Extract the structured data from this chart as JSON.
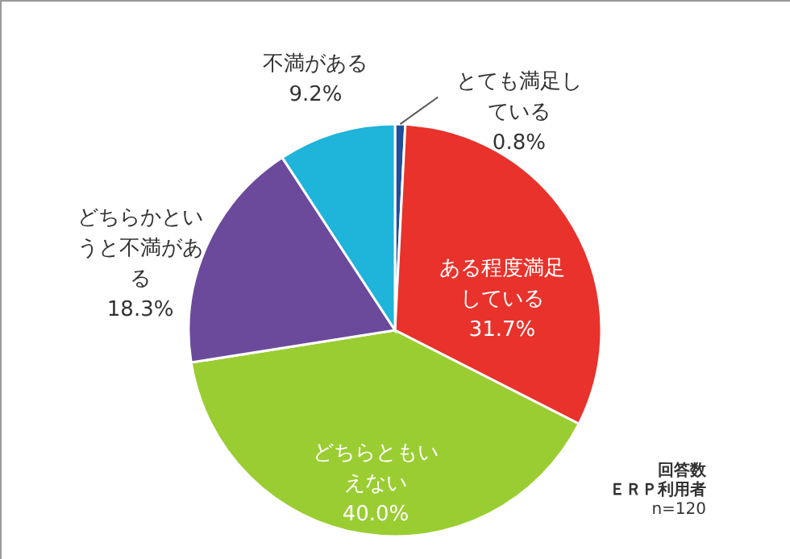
{
  "chart_data": {
    "type": "pie",
    "categories": [
      "とても満足している",
      "ある程度満足している",
      "どちらともいえない",
      "どちらかというと不満がある",
      "不満がある"
    ],
    "values": [
      0.8,
      31.7,
      40.0,
      18.3,
      9.2
    ],
    "colors": [
      "#1f4e9c",
      "#e8322b",
      "#9acd32",
      "#6b4a9b",
      "#1fb4d9"
    ],
    "value_labels": [
      "0.8%",
      "31.7%",
      "40.0%",
      "18.3%",
      "9.2%"
    ],
    "annotations": [
      "回答数",
      "ＥＲＰ利用者",
      "n=120"
    ]
  }
}
